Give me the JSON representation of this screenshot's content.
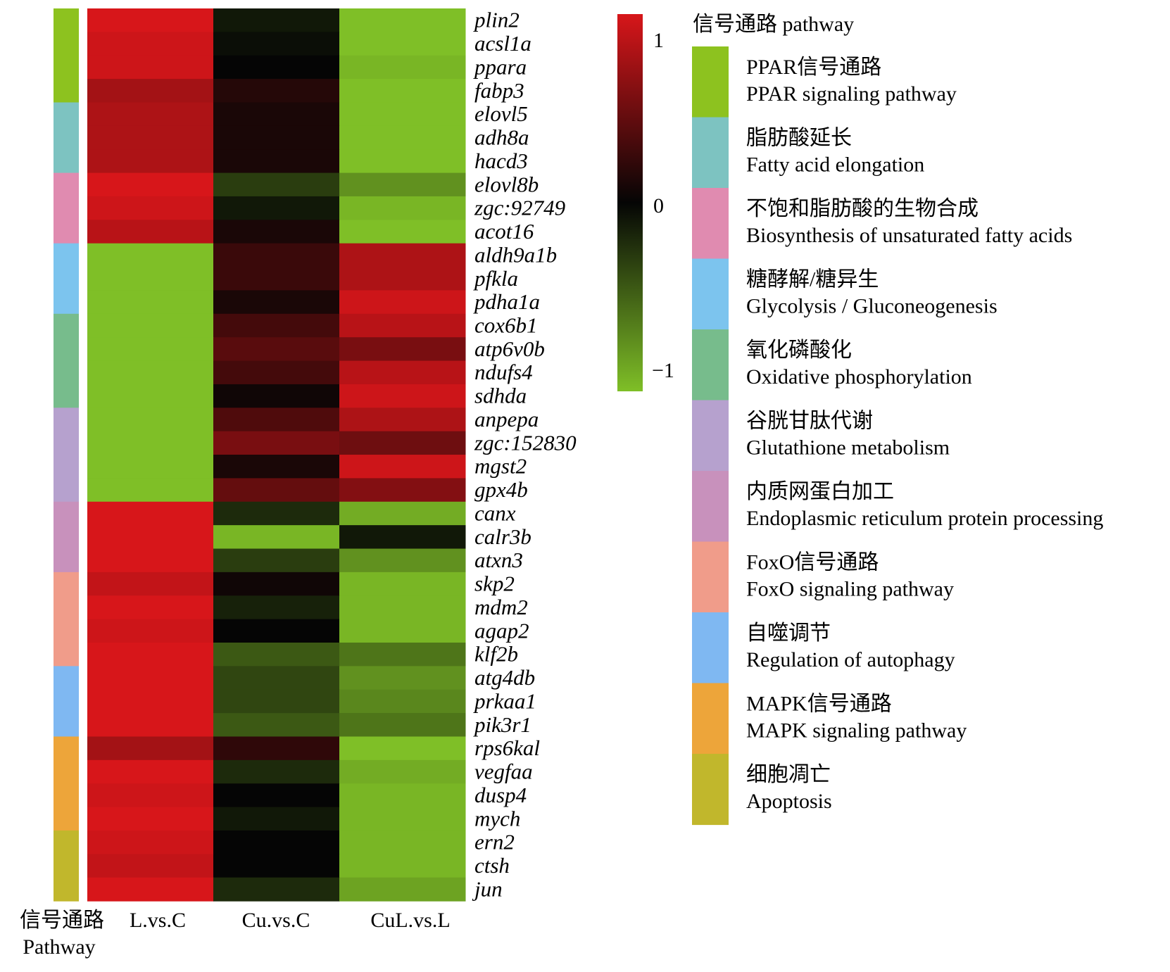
{
  "chart_data": {
    "type": "heatmap",
    "title": "",
    "columns": [
      "L.vs.C",
      "Cu.vs.C",
      "CuL.vs.L"
    ],
    "pathway_column_label": [
      "信号通路",
      "Pathway"
    ],
    "rows": [
      "plin2",
      "acsl1a",
      "ppara",
      "fabp3",
      "elovl5",
      "adh8a",
      "hacd3",
      "elovl8b",
      "zgc:92749",
      "acot16",
      "aldh9a1b",
      "pfkla",
      "pdha1a",
      "cox6b1",
      "atp6v0b",
      "ndufs4",
      "sdhda",
      "anpepa",
      "zgc:152830",
      "mgst2",
      "gpx4b",
      "canx",
      "calr3b",
      "atxn3",
      "skp2",
      "mdm2",
      "agap2",
      "klf2b",
      "atg4db",
      "prkaa1",
      "pik3r1",
      "rps6kal",
      "vegfaa",
      "dusp4",
      "mych",
      "ern2",
      "ctsh",
      "jun"
    ],
    "values": [
      [
        1.0,
        -0.1,
        -1.0
      ],
      [
        0.95,
        -0.05,
        -1.0
      ],
      [
        0.95,
        0.0,
        -0.95
      ],
      [
        0.75,
        0.15,
        -1.0
      ],
      [
        0.8,
        0.1,
        -1.0
      ],
      [
        0.8,
        0.1,
        -1.0
      ],
      [
        0.8,
        0.1,
        -1.0
      ],
      [
        1.0,
        -0.3,
        -0.75
      ],
      [
        0.95,
        -0.1,
        -0.95
      ],
      [
        0.85,
        0.1,
        -1.0
      ],
      [
        -1.0,
        0.25,
        0.8
      ],
      [
        -1.0,
        0.25,
        0.8
      ],
      [
        -1.0,
        0.1,
        0.95
      ],
      [
        -1.0,
        0.3,
        0.85
      ],
      [
        -1.0,
        0.4,
        0.55
      ],
      [
        -1.0,
        0.3,
        0.85
      ],
      [
        -1.0,
        0.05,
        0.95
      ],
      [
        -1.0,
        0.35,
        0.8
      ],
      [
        -1.0,
        0.55,
        0.5
      ],
      [
        -1.0,
        0.1,
        0.95
      ],
      [
        -1.0,
        0.45,
        0.6
      ],
      [
        1.0,
        -0.2,
        -0.9
      ],
      [
        1.0,
        -0.95,
        -0.1
      ],
      [
        1.0,
        -0.3,
        -0.75
      ],
      [
        0.9,
        0.05,
        -0.95
      ],
      [
        1.0,
        -0.15,
        -0.95
      ],
      [
        0.95,
        0.0,
        -0.95
      ],
      [
        1.0,
        -0.45,
        -0.6
      ],
      [
        1.0,
        -0.35,
        -0.75
      ],
      [
        1.0,
        -0.35,
        -0.7
      ],
      [
        1.0,
        -0.45,
        -0.6
      ],
      [
        0.75,
        0.2,
        -1.0
      ],
      [
        1.0,
        -0.2,
        -0.9
      ],
      [
        0.95,
        0.0,
        -0.95
      ],
      [
        1.0,
        -0.1,
        -0.95
      ],
      [
        0.95,
        0.0,
        -0.95
      ],
      [
        0.9,
        0.0,
        -0.95
      ],
      [
        1.0,
        -0.2,
        -0.85
      ]
    ],
    "pathway_spans": [
      {
        "pathway": 0,
        "start": 0,
        "count": 4
      },
      {
        "pathway": 1,
        "start": 4,
        "count": 3
      },
      {
        "pathway": 2,
        "start": 7,
        "count": 3
      },
      {
        "pathway": 3,
        "start": 10,
        "count": 3
      },
      {
        "pathway": 4,
        "start": 13,
        "count": 4
      },
      {
        "pathway": 5,
        "start": 17,
        "count": 4
      },
      {
        "pathway": 6,
        "start": 21,
        "count": 3
      },
      {
        "pathway": 7,
        "start": 24,
        "count": 4
      },
      {
        "pathway": 8,
        "start": 28,
        "count": 3
      },
      {
        "pathway": 9,
        "start": 31,
        "count": 4
      },
      {
        "pathway": 10,
        "start": 35,
        "count": 3
      }
    ],
    "pathways": [
      {
        "zh": "PPAR信号通路",
        "en": "PPAR signaling pathway",
        "color": "#8DC21F"
      },
      {
        "zh": "脂肪酸延长",
        "en": "Fatty acid elongation",
        "color": "#7DC3C1"
      },
      {
        "zh": "不饱和脂肪酸的生物合成",
        "en": "Biosynthesis of unsaturated fatty acids",
        "color": "#E08BB0"
      },
      {
        "zh": "糖酵解/糖异生",
        "en": "Glycolysis / Gluconeogenesis",
        "color": "#7CC4EE"
      },
      {
        "zh": "氧化磷酸化",
        "en": "Oxidative phosphorylation",
        "color": "#77BC8C"
      },
      {
        "zh": "谷胱甘肽代谢",
        "en": "Glutathione metabolism",
        "color": "#B6A1CE"
      },
      {
        "zh": "内质网蛋白加工",
        "en": "Endoplasmic reticulum protein processing",
        "color": "#C891BC"
      },
      {
        "zh": "FoxO信号通路",
        "en": "FoxO signaling pathway",
        "color": "#F09C8A"
      },
      {
        "zh": "自噬调节",
        "en": "Regulation of autophagy",
        "color": "#7FB8F2"
      },
      {
        "zh": "MAPK信号通路",
        "en": "MAPK signaling pathway",
        "color": "#EDA53A"
      },
      {
        "zh": "细胞凋亡",
        "en": "Apoptosis",
        "color": "#C1B72C"
      }
    ],
    "legend_title": "信号通路 pathway",
    "colorbar": {
      "ticks": [
        "1",
        "0",
        "−1"
      ],
      "tick_values": [
        1,
        0,
        -1
      ],
      "low": "#7FBF27",
      "mid": "#050505",
      "high": "#D7161A"
    }
  }
}
